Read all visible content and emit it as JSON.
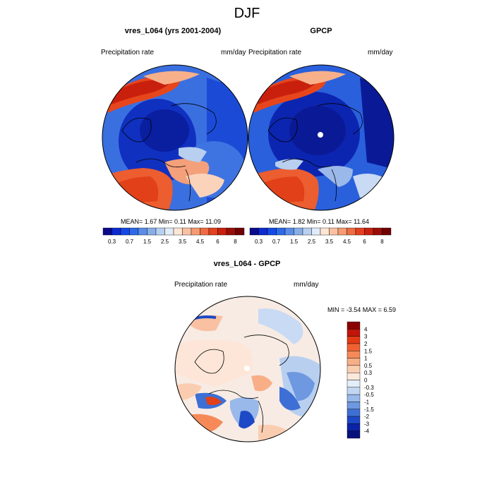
{
  "figure": {
    "title": "DJF"
  },
  "panels": [
    {
      "title": "vres_L064 (yrs 2001-2004)",
      "left_label": "Precipitation rate",
      "right_label": "mm/day",
      "stats": "MEAN=   1.67  Min=   0.11  Max=  11.09",
      "colorbar_levels": [
        "0.3",
        "0.7",
        "1.5",
        "2.5",
        "3.5",
        "4.5",
        "6",
        "8"
      ],
      "colorbar_colors": [
        "#0a0a8c",
        "#0d2bd0",
        "#1449e6",
        "#2e6ae8",
        "#5a8de8",
        "#88aee8",
        "#b8cff0",
        "#e2ecf8",
        "#fde6d4",
        "#f9c1a2",
        "#f59a72",
        "#ef6b43",
        "#e4401e",
        "#c9200e",
        "#9a0d08",
        "#700000"
      ],
      "map_mean_color": "#3f70dc"
    },
    {
      "title": "GPCP",
      "left_label": "Precipitation rate",
      "right_label": "mm/day",
      "stats": "MEAN=   1.82  Min=   0.11  Max=  11.64",
      "colorbar_levels": [
        "0.3",
        "0.7",
        "1.5",
        "2.5",
        "3.5",
        "4.5",
        "6",
        "8"
      ],
      "colorbar_colors": [
        "#0a0a8c",
        "#0d2bd0",
        "#1449e6",
        "#2e6ae8",
        "#5a8de8",
        "#88aee8",
        "#b8cff0",
        "#e2ecf8",
        "#fde6d4",
        "#f9c1a2",
        "#f59a72",
        "#ef6b43",
        "#e4401e",
        "#c9200e",
        "#9a0d08",
        "#700000"
      ],
      "map_mean_color": "#2e5fd8"
    },
    {
      "title": "vres_L064 - GPCP",
      "left_label": "Precipitation rate",
      "right_label": "mm/day",
      "stats": "MIN =  -3.54 MAX =   6.59",
      "colorbar_levels": [
        "4",
        "3",
        "2",
        "1.5",
        "1",
        "0.5",
        "0.3",
        "0",
        "-0.3",
        "-0.5",
        "-1",
        "-1.5",
        "-2",
        "-3",
        "-4"
      ],
      "colorbar_colors": [
        "#8a0000",
        "#c0150a",
        "#e43a14",
        "#f06030",
        "#f58a58",
        "#f8ae86",
        "#fbcdb0",
        "#fde8dc",
        "#e4eefa",
        "#c2d6f2",
        "#98b9ea",
        "#6e98e0",
        "#3d6fd4",
        "#1d48c6",
        "#0c22a8",
        "#06127a"
      ],
      "map_mean_color": "#f7efe9"
    }
  ]
}
